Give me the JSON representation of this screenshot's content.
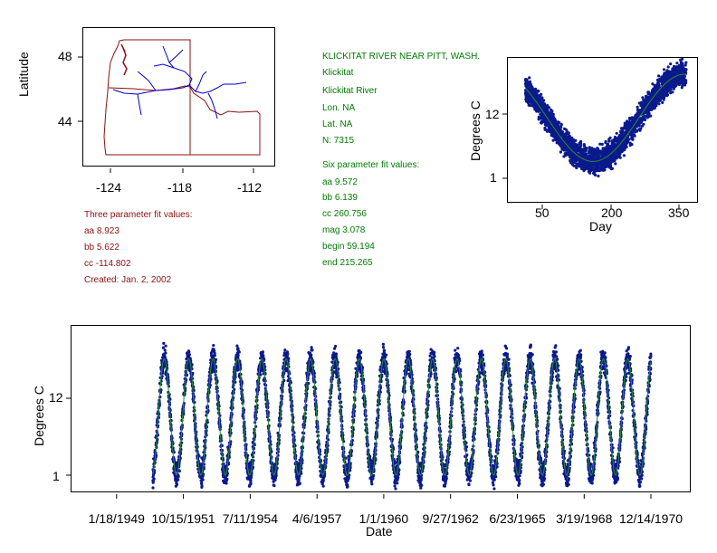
{
  "map_panel": {
    "ylabel": "Latitude",
    "y_ticks": [
      "48",
      "44"
    ],
    "x_ticks": [
      "-124",
      "-118",
      "-112"
    ],
    "colors": {
      "boundary": "#8b1010",
      "rivers": "#0000cc"
    }
  },
  "three_param": {
    "heading": "Three parameter fit values:",
    "aa": "aa 8.923",
    "bb": "bb 5.622",
    "cc": "cc -114.802",
    "created": "Created:   Jan. 2, 2002"
  },
  "station": {
    "title": "KLICKITAT RIVER NEAR PITT, WASH.",
    "name1": "Klickitat",
    "name2": "Klickitat River",
    "lon": "Lon. NA",
    "lat": "Lat. NA",
    "n": "N: 7315"
  },
  "six_param": {
    "heading": "Six parameter fit values:",
    "aa": "aa 9.572",
    "bb": "bb 6.139",
    "cc": "cc 260.756",
    "mag": "mag 3.078",
    "begin": "begin 59.194",
    "end": "end 215.265"
  },
  "chart_data": [
    {
      "type": "scatter",
      "ylabel": "Degrees C",
      "xlabel": "Day",
      "x_ticks": [
        "50",
        "200",
        "350"
      ],
      "y_ticks": [
        "12",
        "1"
      ],
      "xlim": [
        0,
        380
      ],
      "ylim": [
        -2.5,
        18
      ],
      "colors": {
        "points": "#0a1a8c",
        "fit": "#2e8b2e"
      },
      "fit_params": {
        "aa": 9.572,
        "bb": 6.139,
        "cc": 260.756
      },
      "x_range_data": [
        35,
        355
      ]
    },
    {
      "type": "scatter",
      "ylabel": "Degrees C",
      "xlabel": "Date",
      "x_ticks": [
        "1/18/1949",
        "10/15/1951",
        "7/11/1954",
        "4/6/1957",
        "1/1/1960",
        "9/27/1962",
        "6/23/1965",
        "3/19/1968",
        "12/14/1970"
      ],
      "y_ticks": [
        "12",
        "1"
      ],
      "xlim": [
        "1947-03-01",
        "1972-08-01"
      ],
      "ylim": [
        -2.5,
        24
      ],
      "colors": {
        "points": "#0a1a8c",
        "fit": "#2e8b2e"
      },
      "date_range": [
        "1950-07-01",
        "1970-12-01"
      ]
    }
  ]
}
